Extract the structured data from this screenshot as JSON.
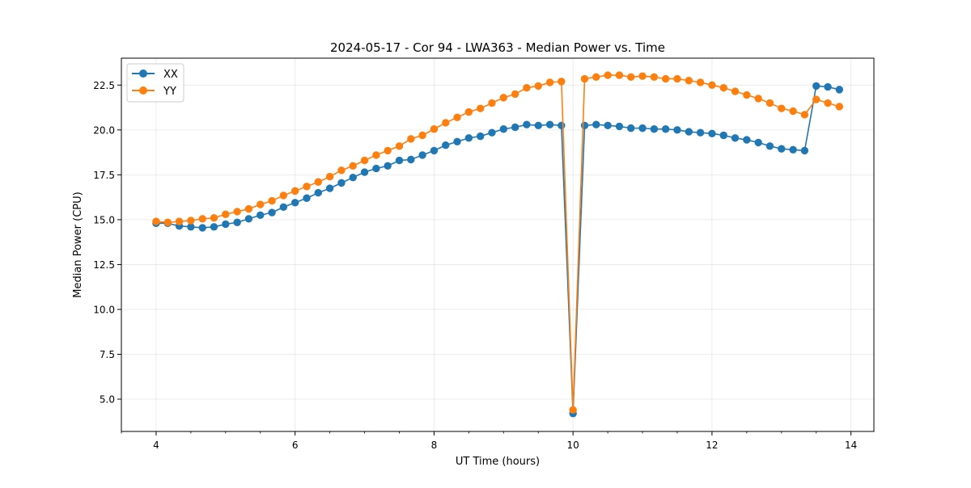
{
  "chart_data": {
    "type": "line",
    "title": "2024-05-17 - Cor 94 - LWA363 - Median Power vs. Time",
    "xlabel": "UT Time (hours)",
    "ylabel": "Median Power (CPU)",
    "xlim": [
      3.5,
      14.33
    ],
    "ylim": [
      3.2,
      24.0
    ],
    "xticks": [
      4,
      6,
      8,
      10,
      12,
      14
    ],
    "xtick_labels": [
      "4",
      "6",
      "8",
      "10",
      "12",
      "14"
    ],
    "x_minor_step": 0.5,
    "yticks": [
      5.0,
      7.5,
      10.0,
      12.5,
      15.0,
      17.5,
      20.0,
      22.5
    ],
    "ytick_labels": [
      "5.0",
      "7.5",
      "10.0",
      "12.5",
      "15.0",
      "17.5",
      "20.0",
      "22.5"
    ],
    "grid": true,
    "legend_position": "top-left",
    "x": [
      4.0,
      4.167,
      4.333,
      4.5,
      4.667,
      4.833,
      5.0,
      5.167,
      5.333,
      5.5,
      5.667,
      5.833,
      6.0,
      6.167,
      6.333,
      6.5,
      6.667,
      6.833,
      7.0,
      7.167,
      7.333,
      7.5,
      7.667,
      7.833,
      8.0,
      8.167,
      8.333,
      8.5,
      8.667,
      8.833,
      9.0,
      9.167,
      9.333,
      9.5,
      9.667,
      9.833,
      10.0,
      10.167,
      10.333,
      10.5,
      10.667,
      10.833,
      11.0,
      11.167,
      11.333,
      11.5,
      11.667,
      11.833,
      12.0,
      12.167,
      12.333,
      12.5,
      12.667,
      12.833,
      13.0,
      13.167,
      13.333,
      13.5,
      13.667,
      13.833
    ],
    "series": [
      {
        "name": "XX",
        "color": "#1f77b4",
        "values": [
          14.8,
          14.8,
          14.65,
          14.6,
          14.55,
          14.6,
          14.75,
          14.85,
          15.05,
          15.25,
          15.4,
          15.7,
          15.95,
          16.2,
          16.5,
          16.75,
          17.05,
          17.35,
          17.65,
          17.85,
          18.0,
          18.3,
          18.35,
          18.6,
          18.85,
          19.15,
          19.35,
          19.55,
          19.65,
          19.85,
          20.05,
          20.15,
          20.3,
          20.25,
          20.3,
          20.25,
          4.2,
          20.25,
          20.3,
          20.25,
          20.2,
          20.1,
          20.1,
          20.05,
          20.05,
          20.0,
          19.9,
          19.85,
          19.8,
          19.7,
          19.55,
          19.45,
          19.3,
          19.1,
          18.95,
          18.9,
          18.85,
          22.45,
          22.4,
          22.25
        ]
      },
      {
        "name": "YY",
        "color": "#ff7f0e",
        "values": [
          14.9,
          14.85,
          14.9,
          14.95,
          15.05,
          15.1,
          15.3,
          15.45,
          15.6,
          15.85,
          16.05,
          16.35,
          16.6,
          16.85,
          17.1,
          17.4,
          17.75,
          18.0,
          18.3,
          18.6,
          18.85,
          19.1,
          19.5,
          19.7,
          20.05,
          20.4,
          20.7,
          21.0,
          21.2,
          21.5,
          21.8,
          22.0,
          22.35,
          22.45,
          22.65,
          22.7,
          4.4,
          22.85,
          22.95,
          23.05,
          23.05,
          22.95,
          23.0,
          22.95,
          22.85,
          22.85,
          22.75,
          22.65,
          22.5,
          22.35,
          22.15,
          21.95,
          21.75,
          21.5,
          21.2,
          21.05,
          20.85,
          21.7,
          21.5,
          21.3
        ]
      }
    ]
  }
}
